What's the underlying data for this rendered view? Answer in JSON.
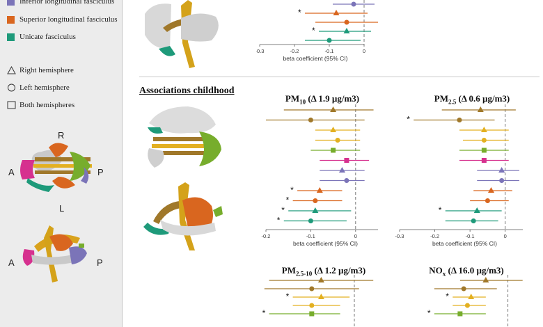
{
  "legend": {
    "tracts": [
      {
        "label": "Inferior longitudinal fasciculus",
        "color": "#7b74b8"
      },
      {
        "label": "Superior longitudinal fasciculus",
        "color": "#d9661f"
      },
      {
        "label": "Unicate fasciculus",
        "color": "#1e9a7a"
      }
    ],
    "shapes": [
      {
        "label": "Right hemisphere",
        "shape": "triangle"
      },
      {
        "label": "Left hemisphere",
        "shape": "circle"
      },
      {
        "label": "Both hemispheres",
        "shape": "square"
      }
    ]
  },
  "orientation": {
    "R": "R",
    "L": "L",
    "A": "A",
    "P": "P",
    "A2": "A",
    "P2": "P"
  },
  "section_title": "Associations childhood",
  "colors": {
    "brown": "#a0782a",
    "yellow": "#e3b021",
    "green": "#77ad2c",
    "magenta": "#d6318f",
    "purple": "#7b74b8",
    "orange": "#d9661f",
    "teal": "#1e9a7a"
  },
  "chart_data": [
    {
      "type": "forest",
      "title": "",
      "xlabel": "beta coefficient (95% CI)",
      "xlim": [
        -0.3,
        0.0
      ],
      "ticks": [
        "-0.3",
        "-0.2",
        "-0.1",
        "0"
      ],
      "rows": [
        {
          "color": "purple",
          "shape": "circle",
          "est": -0.03,
          "lo": -0.09,
          "hi": 0.03,
          "sig": false
        },
        {
          "color": "orange",
          "shape": "triangle",
          "est": -0.08,
          "lo": -0.17,
          "hi": 0.01,
          "sig": true
        },
        {
          "color": "orange",
          "shape": "circle",
          "est": -0.05,
          "lo": -0.14,
          "hi": 0.04,
          "sig": false
        },
        {
          "color": "teal",
          "shape": "triangle",
          "est": -0.05,
          "lo": -0.13,
          "hi": 0.02,
          "sig": true
        },
        {
          "color": "teal",
          "shape": "circle",
          "est": -0.1,
          "lo": -0.17,
          "hi": -0.01,
          "sig": false
        }
      ]
    },
    {
      "type": "forest",
      "title": "PM10 (Δ 1.9 µg/m3)",
      "xlabel": "beta coefficient (95% CI)",
      "xlim": [
        -0.2,
        0.05
      ],
      "ticks": [
        "-0.2",
        "-0.1",
        "0"
      ],
      "rows": [
        {
          "color": "brown",
          "shape": "triangle",
          "est": -0.05,
          "lo": -0.16,
          "hi": 0.04,
          "sig": false
        },
        {
          "color": "brown",
          "shape": "circle",
          "est": -0.1,
          "lo": -0.2,
          "hi": 0.02,
          "sig": false
        },
        {
          "color": "yellow",
          "shape": "triangle",
          "est": -0.05,
          "lo": -0.09,
          "hi": 0.01,
          "sig": false
        },
        {
          "color": "yellow",
          "shape": "circle",
          "est": -0.04,
          "lo": -0.09,
          "hi": 0.01,
          "sig": false
        },
        {
          "color": "green",
          "shape": "square",
          "est": -0.05,
          "lo": -0.1,
          "hi": 0.01,
          "sig": false
        },
        {
          "color": "magenta",
          "shape": "square",
          "est": -0.02,
          "lo": -0.08,
          "hi": 0.03,
          "sig": false
        },
        {
          "color": "purple",
          "shape": "triangle",
          "est": -0.03,
          "lo": -0.08,
          "hi": 0.02,
          "sig": false
        },
        {
          "color": "purple",
          "shape": "circle",
          "est": -0.02,
          "lo": -0.08,
          "hi": 0.02,
          "sig": false
        },
        {
          "color": "orange",
          "shape": "triangle",
          "est": -0.08,
          "lo": -0.13,
          "hi": -0.03,
          "sig": true
        },
        {
          "color": "orange",
          "shape": "circle",
          "est": -0.09,
          "lo": -0.14,
          "hi": -0.03,
          "sig": true
        },
        {
          "color": "teal",
          "shape": "triangle",
          "est": -0.09,
          "lo": -0.15,
          "hi": -0.01,
          "sig": true
        },
        {
          "color": "teal",
          "shape": "circle",
          "est": -0.1,
          "lo": -0.16,
          "hi": -0.02,
          "sig": true
        }
      ]
    },
    {
      "type": "forest",
      "title": "PM2.5 (Δ 0.6 µg/m3)",
      "xlabel": "beta coefficient (95% CI)",
      "xlim": [
        -0.3,
        0.05
      ],
      "ticks": [
        "-0.3",
        "-0.2",
        "-0.1",
        "0"
      ],
      "rows": [
        {
          "color": "brown",
          "shape": "triangle",
          "est": -0.07,
          "lo": -0.18,
          "hi": 0.03,
          "sig": false
        },
        {
          "color": "brown",
          "shape": "circle",
          "est": -0.13,
          "lo": -0.26,
          "hi": -0.03,
          "sig": true
        },
        {
          "color": "yellow",
          "shape": "triangle",
          "est": -0.06,
          "lo": -0.13,
          "hi": 0.01,
          "sig": false
        },
        {
          "color": "yellow",
          "shape": "circle",
          "est": -0.06,
          "lo": -0.12,
          "hi": 0.01,
          "sig": false
        },
        {
          "color": "green",
          "shape": "square",
          "est": -0.06,
          "lo": -0.13,
          "hi": 0.01,
          "sig": false
        },
        {
          "color": "magenta",
          "shape": "square",
          "est": -0.06,
          "lo": -0.13,
          "hi": 0.01,
          "sig": false
        },
        {
          "color": "purple",
          "shape": "triangle",
          "est": -0.01,
          "lo": -0.08,
          "hi": 0.04,
          "sig": false
        },
        {
          "color": "purple",
          "shape": "circle",
          "est": -0.01,
          "lo": -0.08,
          "hi": 0.04,
          "sig": false
        },
        {
          "color": "orange",
          "shape": "triangle",
          "est": -0.04,
          "lo": -0.09,
          "hi": 0.02,
          "sig": false
        },
        {
          "color": "orange",
          "shape": "circle",
          "est": -0.05,
          "lo": -0.1,
          "hi": 0.01,
          "sig": false
        },
        {
          "color": "teal",
          "shape": "triangle",
          "est": -0.08,
          "lo": -0.17,
          "hi": -0.01,
          "sig": true
        },
        {
          "color": "teal",
          "shape": "circle",
          "est": -0.09,
          "lo": -0.17,
          "hi": -0.02,
          "sig": false
        }
      ]
    },
    {
      "type": "forest",
      "title": "PM2.5-10 (Δ 1.2 µg/m3)",
      "xlabel": "",
      "xlim": [
        -0.2,
        0.05
      ],
      "ticks": [],
      "rows": [
        {
          "color": "brown",
          "shape": "triangle",
          "est": -0.07,
          "lo": -0.18,
          "hi": 0.04,
          "sig": false
        },
        {
          "color": "brown",
          "shape": "circle",
          "est": -0.09,
          "lo": -0.19,
          "hi": 0.01,
          "sig": false
        },
        {
          "color": "yellow",
          "shape": "triangle",
          "est": -0.07,
          "lo": -0.13,
          "hi": -0.01,
          "sig": true
        },
        {
          "color": "yellow",
          "shape": "circle",
          "est": -0.09,
          "lo": -0.13,
          "hi": -0.03,
          "sig": false
        },
        {
          "color": "green",
          "shape": "square",
          "est": -0.09,
          "lo": -0.18,
          "hi": -0.03,
          "sig": true
        }
      ]
    },
    {
      "type": "forest",
      "title": "NOx (Δ 16.0 µg/m3)",
      "xlabel": "",
      "xlim": [
        -0.3,
        0.05
      ],
      "ticks": [],
      "rows": [
        {
          "color": "brown",
          "shape": "triangle",
          "est": -0.06,
          "lo": -0.13,
          "hi": 0.04,
          "sig": false
        },
        {
          "color": "brown",
          "shape": "circle",
          "est": -0.12,
          "lo": -0.2,
          "hi": -0.03,
          "sig": false
        },
        {
          "color": "yellow",
          "shape": "triangle",
          "est": -0.1,
          "lo": -0.15,
          "hi": -0.06,
          "sig": true
        },
        {
          "color": "yellow",
          "shape": "circle",
          "est": -0.11,
          "lo": -0.15,
          "hi": -0.06,
          "sig": false
        },
        {
          "color": "green",
          "shape": "square",
          "est": -0.13,
          "lo": -0.2,
          "hi": -0.06,
          "sig": true
        }
      ]
    }
  ]
}
